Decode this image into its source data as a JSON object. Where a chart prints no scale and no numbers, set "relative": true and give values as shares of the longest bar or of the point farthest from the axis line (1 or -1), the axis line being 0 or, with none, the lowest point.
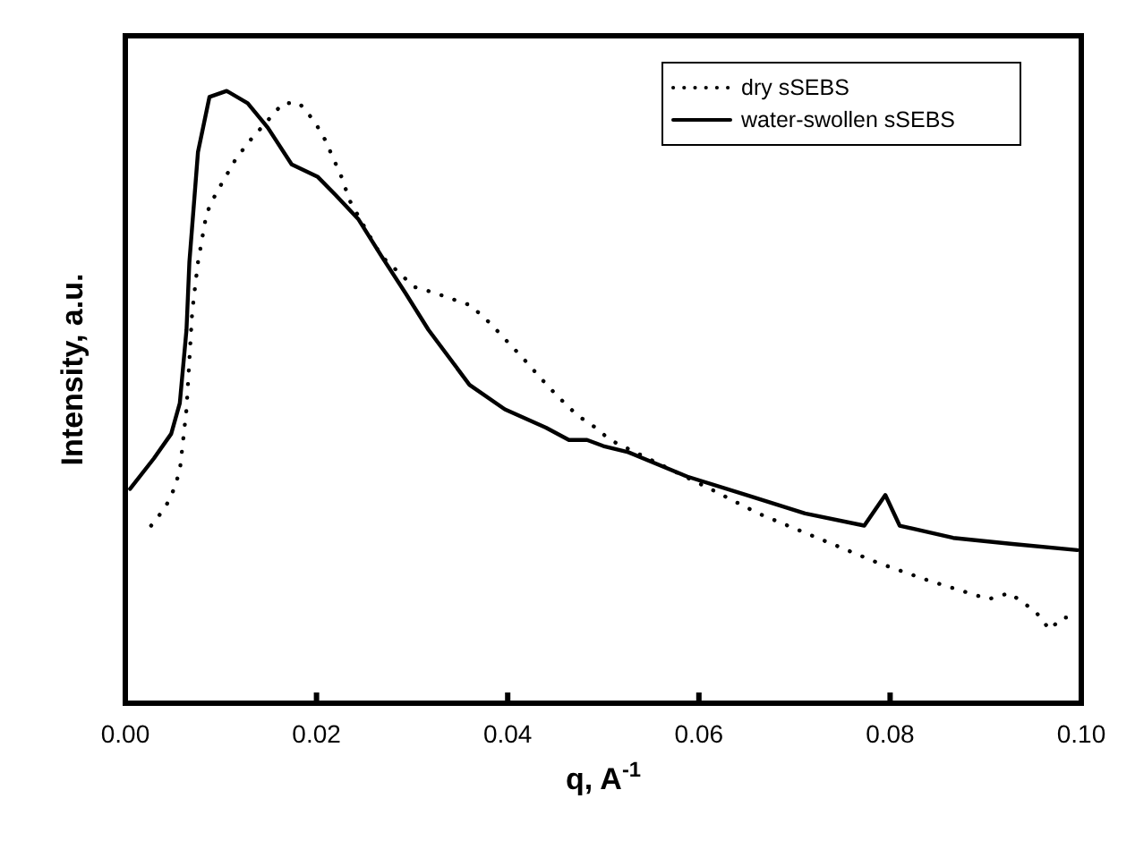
{
  "chart_data": {
    "type": "line",
    "relative": true,
    "xlabel": "q, A$^{-1}$",
    "ylabel": "Intensity, a.u.",
    "xlim": [
      0,
      0.1
    ],
    "xticks": [
      {
        "value": 0,
        "label": "0.00"
      },
      {
        "value": 0.02,
        "label": "0.02"
      },
      {
        "value": 0.04,
        "label": "0.04"
      },
      {
        "value": 0.06,
        "label": "0.06"
      },
      {
        "value": 0.08,
        "label": "0.08"
      },
      {
        "value": 0.1,
        "label": "0.10"
      }
    ],
    "legend": "top right",
    "grid": false,
    "series": [
      {
        "name": "dry sSEBS",
        "color": "#000000",
        "line_style": "dotted",
        "x": [
          0.0027,
          0.0042,
          0.0051,
          0.0057,
          0.0064,
          0.007,
          0.0076,
          0.0085,
          0.0094,
          0.0116,
          0.0131,
          0.0165,
          0.0182,
          0.0198,
          0.0209,
          0.0226,
          0.0235,
          0.0253,
          0.0268,
          0.0302,
          0.0324,
          0.0342,
          0.0361,
          0.0382,
          0.04,
          0.0418,
          0.0435,
          0.0453,
          0.0473,
          0.0492,
          0.0507,
          0.0612,
          0.0662,
          0.0724,
          0.0786,
          0.0841,
          0.0903,
          0.0925,
          0.0952,
          0.0967,
          0.098,
          0.0997
        ],
        "values": [
          0.29,
          0.32,
          0.35,
          0.38,
          0.48,
          0.64,
          0.72,
          0.8,
          0.83,
          0.89,
          0.92,
          0.98,
          0.98,
          0.95,
          0.92,
          0.86,
          0.82,
          0.77,
          0.73,
          0.68,
          0.67,
          0.66,
          0.65,
          0.62,
          0.59,
          0.56,
          0.53,
          0.5,
          0.47,
          0.45,
          0.43,
          0.35,
          0.31,
          0.27,
          0.23,
          0.2,
          0.17,
          0.18,
          0.15,
          0.12,
          0.14,
          0.14
        ]
      },
      {
        "name": "water-swollen sSEBS",
        "color": "#000000",
        "line_style": "solid",
        "x": [
          0.0005,
          0.003,
          0.0048,
          0.0057,
          0.0064,
          0.0067,
          0.0076,
          0.0088,
          0.0106,
          0.0128,
          0.0149,
          0.0174,
          0.0201,
          0.022,
          0.0244,
          0.0268,
          0.0293,
          0.0317,
          0.036,
          0.0397,
          0.044,
          0.0464,
          0.0483,
          0.05,
          0.0526,
          0.0588,
          0.065,
          0.0711,
          0.0773,
          0.0795,
          0.081,
          0.0866,
          0.0928,
          0.0996
        ],
        "values": [
          0.35,
          0.4,
          0.44,
          0.49,
          0.61,
          0.72,
          0.9,
          0.99,
          1,
          0.98,
          0.94,
          0.88,
          0.86,
          0.83,
          0.79,
          0.73,
          0.67,
          0.61,
          0.52,
          0.48,
          0.45,
          0.43,
          0.43,
          0.42,
          0.41,
          0.37,
          0.34,
          0.31,
          0.29,
          0.34,
          0.29,
          0.27,
          0.26,
          0.25
        ]
      }
    ]
  }
}
